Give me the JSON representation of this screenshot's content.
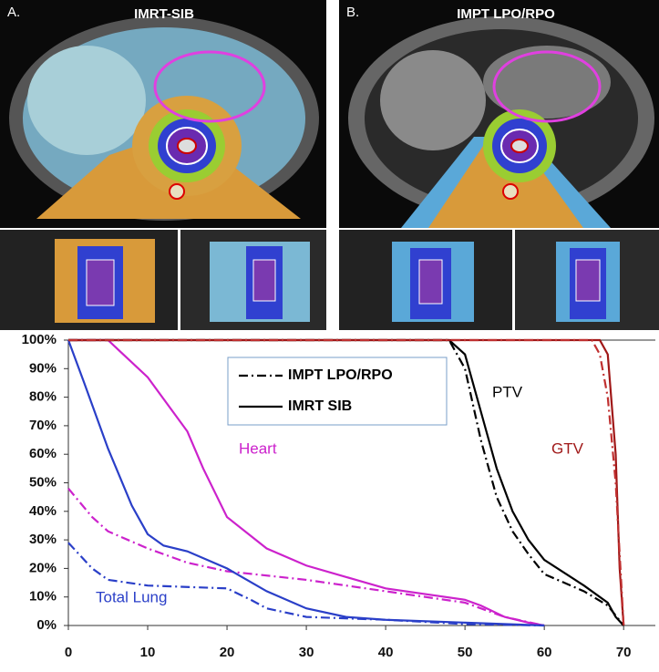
{
  "panels": [
    {
      "letter": "A.",
      "title": "IMRT-SIB"
    },
    {
      "letter": "B.",
      "title": "IMPT LPO/RPO"
    }
  ],
  "chart_data": {
    "type": "line",
    "xlim": [
      0,
      74
    ],
    "xticks": [
      0,
      10,
      20,
      30,
      40,
      50,
      60,
      70
    ],
    "ylim": [
      0,
      100
    ],
    "yticks": [
      {
        "value": 0,
        "label": "0%"
      },
      {
        "value": 10,
        "label": "10%"
      },
      {
        "value": 20,
        "label": "20%"
      },
      {
        "value": 30,
        "label": "30%"
      },
      {
        "value": 40,
        "label": "40%"
      },
      {
        "value": 50,
        "label": "50%"
      },
      {
        "value": 60,
        "label": "60%"
      },
      {
        "value": 70,
        "label": "70%"
      },
      {
        "value": 80,
        "label": "80%"
      },
      {
        "value": 90,
        "label": "90%"
      },
      {
        "value": 100,
        "label": "100%"
      }
    ],
    "grid": false,
    "legend": [
      {
        "name": "IMPT LPO/RPO",
        "dash": "dashdot"
      },
      {
        "name": "IMRT SIB",
        "dash": "solid"
      }
    ],
    "series": [
      {
        "name": "Heart",
        "plan": "IMRT SIB",
        "color": "#cc22cc",
        "x": [
          0,
          5,
          10,
          15,
          17,
          20,
          25,
          30,
          35,
          40,
          45,
          50,
          52,
          55,
          58,
          60
        ],
        "values": [
          100,
          100,
          87,
          68,
          55,
          38,
          27,
          21,
          17,
          13,
          11,
          9,
          7,
          3,
          1,
          0
        ]
      },
      {
        "name": "Heart",
        "plan": "IMPT LPO/RPO",
        "color": "#cc22cc",
        "x": [
          0,
          3,
          5,
          10,
          15,
          20,
          30,
          40,
          50,
          55,
          60
        ],
        "values": [
          48,
          38,
          33,
          27,
          22,
          19,
          16,
          12,
          8,
          3,
          0
        ]
      },
      {
        "name": "Total Lung",
        "plan": "IMRT SIB",
        "color": "#2a3fc8",
        "x": [
          0,
          2,
          5,
          8,
          10,
          12,
          15,
          20,
          25,
          30,
          35,
          40,
          50,
          60
        ],
        "values": [
          100,
          85,
          62,
          42,
          32,
          28,
          26,
          20,
          12,
          6,
          3,
          2,
          1,
          0
        ]
      },
      {
        "name": "Total Lung",
        "plan": "IMPT LPO/RPO",
        "color": "#2a3fc8",
        "x": [
          0,
          3,
          5,
          10,
          20,
          23,
          25,
          30,
          40,
          50,
          60
        ],
        "values": [
          29,
          20,
          16,
          14,
          13,
          9,
          6,
          3,
          2,
          0.5,
          0
        ]
      },
      {
        "name": "PTV",
        "plan": "IMRT SIB",
        "color": "#000000",
        "x": [
          0,
          48,
          50,
          52,
          54,
          56,
          58,
          60,
          65,
          68,
          69,
          70
        ],
        "values": [
          100,
          100,
          95,
          75,
          55,
          40,
          30,
          23,
          14,
          8,
          3,
          0
        ]
      },
      {
        "name": "PTV",
        "plan": "IMPT LPO/RPO",
        "color": "#000000",
        "x": [
          0,
          48,
          50,
          52,
          54,
          56,
          58,
          60,
          65,
          68,
          70
        ],
        "values": [
          100,
          100,
          90,
          65,
          45,
          33,
          25,
          18,
          12,
          7,
          0
        ]
      },
      {
        "name": "GTV",
        "plan": "IMRT SIB",
        "color": "#a01818",
        "x": [
          0,
          67,
          68,
          69,
          69.5,
          70
        ],
        "values": [
          100,
          100,
          95,
          60,
          20,
          0
        ]
      },
      {
        "name": "GTV",
        "plan": "IMPT LPO/RPO",
        "color": "#c03030",
        "x": [
          0,
          66,
          67,
          68,
          69,
          70
        ],
        "values": [
          100,
          100,
          95,
          80,
          50,
          0
        ]
      }
    ]
  }
}
